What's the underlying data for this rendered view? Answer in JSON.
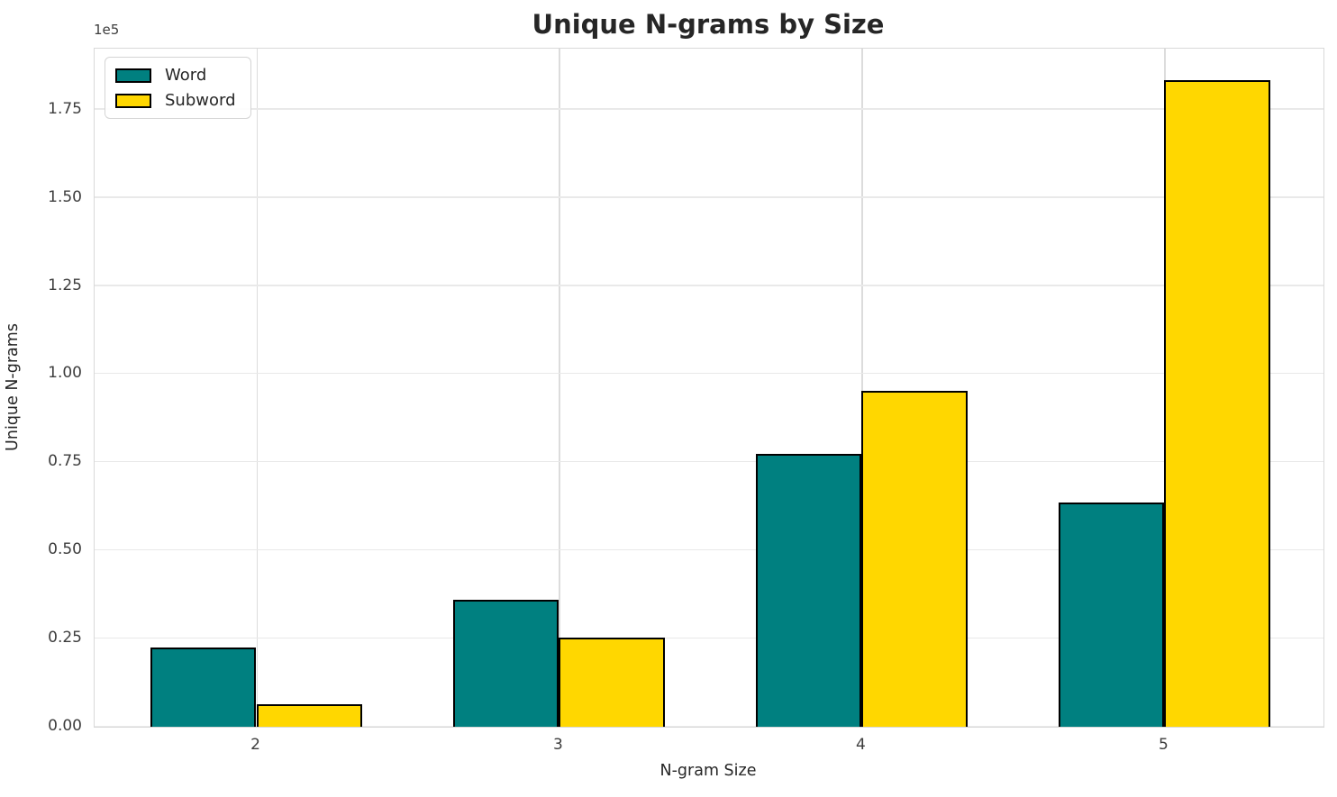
{
  "chart_data": {
    "type": "bar",
    "title": "Unique N-grams by Size",
    "xlabel": "N-gram Size",
    "ylabel": "Unique N-grams",
    "y_offset_text": "1e5",
    "categories": [
      "2",
      "3",
      "4",
      "5"
    ],
    "series": [
      {
        "name": "Word",
        "color": "#008080",
        "values": [
          22500,
          36000,
          77300,
          63700
        ]
      },
      {
        "name": "Subword",
        "color": "#FFD700",
        "values": [
          6400,
          25300,
          95300,
          183400
        ]
      }
    ],
    "ylim": [
      0,
      192300
    ],
    "yticks": {
      "values": [
        0,
        25000,
        50000,
        75000,
        100000,
        125000,
        150000,
        175000
      ],
      "labels": [
        "0.00",
        "0.25",
        "0.50",
        "0.75",
        "1.00",
        "1.25",
        "1.50",
        "1.75"
      ]
    },
    "grid": true,
    "legend_position": "upper left",
    "bar_edge_color": "#000000",
    "bar_width_ratio": 0.35,
    "colors": {
      "grid": "#e9e9e9",
      "axis_border": "#d9d9d9",
      "text": "#262626",
      "tick_text": "#3d3d3d"
    }
  }
}
